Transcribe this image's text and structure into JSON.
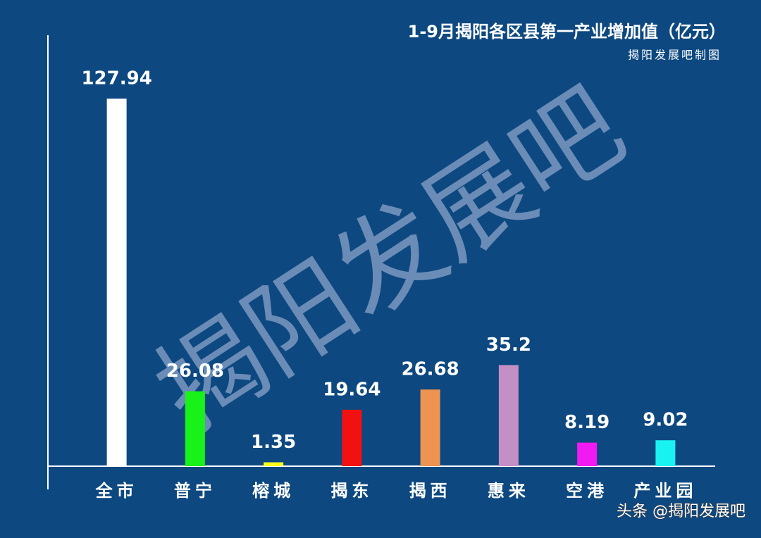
{
  "chart_data": {
    "type": "bar",
    "title": "1-9月揭阳各区县第一产业增加值（亿元）",
    "subtitle": "揭阳发展吧制图",
    "watermark": "揭阳发展吧",
    "footer": "头条 @揭阳发展吧",
    "categories": [
      "全市",
      "普宁",
      "榕城",
      "揭东",
      "揭西",
      "惠来",
      "空港",
      "产业园"
    ],
    "values": [
      127.94,
      26.08,
      1.35,
      19.64,
      26.68,
      35.2,
      8.19,
      9.02
    ],
    "colors": [
      "#ffffff",
      "#19f219",
      "#ffff1e",
      "#f21111",
      "#ef9352",
      "#c48fc4",
      "#f21af2",
      "#1af2f2"
    ]
  }
}
